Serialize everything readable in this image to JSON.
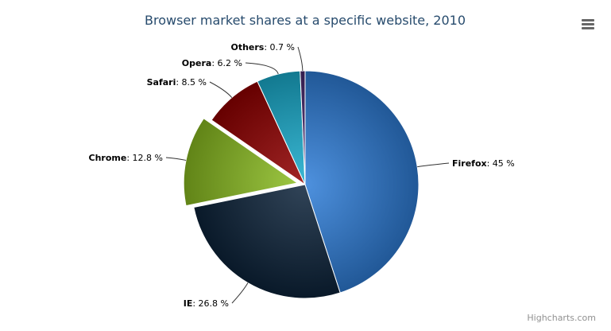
{
  "chart_data": {
    "type": "pie",
    "title": "Browser market shares at a specific website, 2010",
    "unit": "%",
    "slices": [
      {
        "name": "Firefox",
        "value": 45.0,
        "color": "#2f7ed8",
        "sliced": false
      },
      {
        "name": "IE",
        "value": 26.8,
        "color": "#0d233a",
        "sliced": false
      },
      {
        "name": "Chrome",
        "value": 12.8,
        "color": "#8bbc21",
        "sliced": true
      },
      {
        "name": "Safari",
        "value": 8.5,
        "color": "#910000",
        "sliced": false
      },
      {
        "name": "Opera",
        "value": 6.2,
        "color": "#1aadce",
        "sliced": false
      },
      {
        "name": "Others",
        "value": 0.7,
        "color": "#492970",
        "sliced": false
      }
    ]
  },
  "credits": "Highcharts.com",
  "menu_icon": "hamburger-menu-icon"
}
